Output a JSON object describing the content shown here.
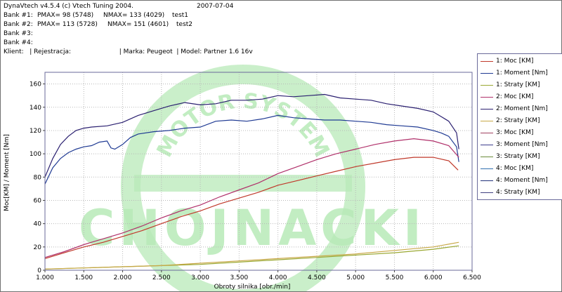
{
  "header": {
    "app": "DynaVtech v4.5.4 (c) Vtech Tuning 2004.",
    "date": "2007-07-04",
    "banks": [
      {
        "label": "Bank #1:",
        "pmax": "PMAX= 98 (5748)",
        "nmax": "NMAX= 133 (4029)",
        "name": "test1"
      },
      {
        "label": "Bank #2:",
        "pmax": "PMAX= 113 (5728)",
        "nmax": "NMAX= 151 (4601)",
        "name": "test2"
      },
      {
        "label": "Bank #3:",
        "pmax": "",
        "nmax": "",
        "name": ""
      },
      {
        "label": "Bank #4:",
        "pmax": "",
        "nmax": "",
        "name": ""
      }
    ],
    "client_line": "Klient:   | Rejestracja:                        | Marka: Peugeot  | Model: Partner 1.6 16v"
  },
  "watermark": {
    "arc_text": "MOTOR SYSTEM",
    "big_text": "CHOJNACKI",
    "color": "#b8eab8"
  },
  "chart_data": {
    "type": "line",
    "xlabel": "Obroty silnika [obr./min]",
    "ylabel": "Moc[KM] / Moment [Nm]",
    "xlim": [
      1000,
      6500
    ],
    "ylim": [
      0,
      170
    ],
    "x_ticks": [
      1000,
      1500,
      2000,
      2500,
      3000,
      3500,
      4000,
      4500,
      5000,
      5500,
      6000,
      6500
    ],
    "x_tick_labels": [
      "1.000",
      "1.500",
      "2.000",
      "2.500",
      "3.000",
      "3.500",
      "4.000",
      "4.500",
      "5.000",
      "5.500",
      "6.000",
      "6.500"
    ],
    "y_ticks": [
      0,
      20,
      40,
      60,
      80,
      100,
      120,
      140,
      160
    ],
    "y_tick_labels": [
      "0",
      "20",
      "40",
      "60",
      "80",
      "100",
      "120",
      "140",
      "160"
    ],
    "grid": true,
    "legend": "right",
    "series": [
      {
        "name": "1: Moc [KM]",
        "color": "#c0392b",
        "x": [
          1000,
          1250,
          1500,
          1750,
          2000,
          2250,
          2500,
          2750,
          3000,
          3250,
          3500,
          3750,
          4000,
          4250,
          4500,
          4750,
          5000,
          5250,
          5500,
          5750,
          6000,
          6200,
          6320
        ],
        "y": [
          10,
          15,
          20,
          24,
          29,
          34,
          40,
          46,
          51,
          57,
          62,
          67,
          73,
          77,
          81,
          85,
          89,
          92,
          95,
          97,
          97,
          94,
          86
        ]
      },
      {
        "name": "1: Moment [Nm]",
        "color": "#1f3a93",
        "x": [
          1000,
          1100,
          1200,
          1300,
          1400,
          1500,
          1600,
          1700,
          1800,
          1850,
          1900,
          2000,
          2100,
          2200,
          2400,
          2600,
          2800,
          3000,
          3200,
          3400,
          3600,
          3800,
          4000,
          4200,
          4400,
          4600,
          4800,
          5000,
          5200,
          5400,
          5600,
          5800,
          6000,
          6100,
          6200,
          6300,
          6330
        ],
        "y": [
          74,
          88,
          96,
          101,
          104,
          106,
          107,
          110,
          111,
          105,
          104,
          108,
          114,
          117,
          119,
          120,
          122,
          123,
          128,
          129,
          128,
          130,
          133,
          131,
          130,
          129,
          129,
          128,
          127,
          125,
          124,
          123,
          120,
          118,
          115,
          106,
          93
        ]
      },
      {
        "name": "1: Straty [KM]",
        "color": "#9aa832",
        "x": [
          1000,
          1500,
          2000,
          2500,
          3000,
          3500,
          4000,
          4500,
          5000,
          5500,
          6000,
          6330
        ],
        "y": [
          1,
          2,
          3,
          4,
          5,
          7,
          9,
          11,
          13,
          15,
          18,
          21
        ]
      },
      {
        "name": "2: Moc [KM]",
        "color": "#b0306a",
        "x": [
          1000,
          1250,
          1500,
          1750,
          2000,
          2250,
          2500,
          2750,
          3000,
          3250,
          3500,
          3750,
          4000,
          4250,
          4500,
          4750,
          5000,
          5250,
          5500,
          5750,
          6000,
          6200,
          6330
        ],
        "y": [
          11,
          16,
          22,
          27,
          32,
          38,
          45,
          51,
          56,
          63,
          69,
          75,
          83,
          89,
          95,
          100,
          104,
          108,
          111,
          113,
          111,
          107,
          97
        ]
      },
      {
        "name": "2: Moment [Nm]",
        "color": "#2a1f70",
        "x": [
          1000,
          1100,
          1200,
          1300,
          1400,
          1500,
          1600,
          1800,
          2000,
          2200,
          2400,
          2600,
          2800,
          3000,
          3200,
          3400,
          3600,
          3800,
          4000,
          4200,
          4400,
          4600,
          4800,
          5000,
          5200,
          5400,
          5600,
          5800,
          6000,
          6100,
          6200,
          6300,
          6330
        ],
        "y": [
          80,
          96,
          108,
          115,
          120,
          122,
          123,
          124,
          127,
          133,
          137,
          141,
          144,
          142,
          143,
          146,
          146,
          147,
          150,
          149,
          150,
          151,
          148,
          147,
          146,
          143,
          141,
          139,
          136,
          132,
          128,
          118,
          104
        ]
      },
      {
        "name": "2: Straty [KM]",
        "color": "#c8a848",
        "x": [
          1000,
          1500,
          2000,
          2500,
          3000,
          3500,
          4000,
          4500,
          5000,
          5500,
          6000,
          6330
        ],
        "y": [
          1,
          2,
          3,
          4,
          6,
          8,
          10,
          12,
          14,
          17,
          20,
          24
        ]
      },
      {
        "name": "3: Moc [KM]",
        "color": "#a04060",
        "x": [],
        "y": []
      },
      {
        "name": "3: Moment [Nm]",
        "color": "#3c3c8c",
        "x": [],
        "y": []
      },
      {
        "name": "3: Straty [KM]",
        "color": "#6a8a3a",
        "x": [],
        "y": []
      },
      {
        "name": "4: Moc [KM]",
        "color": "#3070b0",
        "x": [],
        "y": []
      },
      {
        "name": "4: Moment [Nm]",
        "color": "#20307a",
        "x": [],
        "y": []
      },
      {
        "name": "4: Straty [KM]",
        "color": "#404080",
        "x": [],
        "y": []
      }
    ]
  }
}
